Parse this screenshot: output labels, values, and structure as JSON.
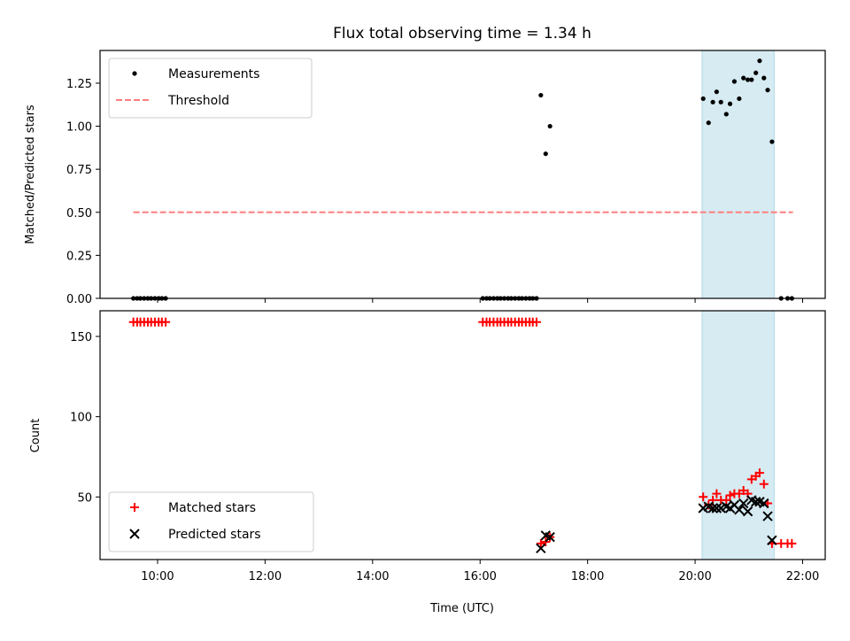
{
  "chart_data": [
    {
      "type": "scatter",
      "title": "Flux total observing time = 1.34 h",
      "xlabel": "",
      "ylabel": "Matched/Predicted stars",
      "xlim": [
        8.93,
        22.42
      ],
      "ylim": [
        0.0,
        1.44
      ],
      "yticks": [
        0.0,
        0.25,
        0.5,
        0.75,
        1.0,
        1.25
      ],
      "ytick_labels": [
        "0.00",
        "0.25",
        "0.50",
        "0.75",
        "1.00",
        "1.25"
      ],
      "legend": "top-left",
      "highlight_span": [
        20.13,
        21.47
      ],
      "highlight_color": "#add8e6",
      "series": [
        {
          "name": "Measurements",
          "kind": "points",
          "color": "#000000",
          "points": [
            [
              9.55,
              0.0
            ],
            [
              9.62,
              0.0
            ],
            [
              9.68,
              0.0
            ],
            [
              9.75,
              0.0
            ],
            [
              9.82,
              0.0
            ],
            [
              9.88,
              0.0
            ],
            [
              9.95,
              0.0
            ],
            [
              10.02,
              0.0
            ],
            [
              10.08,
              0.0
            ],
            [
              10.15,
              0.0
            ],
            [
              16.05,
              0.0
            ],
            [
              16.12,
              0.0
            ],
            [
              16.18,
              0.0
            ],
            [
              16.25,
              0.0
            ],
            [
              16.32,
              0.0
            ],
            [
              16.38,
              0.0
            ],
            [
              16.45,
              0.0
            ],
            [
              16.52,
              0.0
            ],
            [
              16.58,
              0.0
            ],
            [
              16.65,
              0.0
            ],
            [
              16.72,
              0.0
            ],
            [
              16.78,
              0.0
            ],
            [
              16.85,
              0.0
            ],
            [
              16.92,
              0.0
            ],
            [
              16.98,
              0.0
            ],
            [
              17.05,
              0.0
            ],
            [
              17.13,
              1.18
            ],
            [
              17.22,
              0.84
            ],
            [
              17.3,
              1.0
            ],
            [
              20.15,
              1.16
            ],
            [
              20.25,
              1.02
            ],
            [
              20.33,
              1.14
            ],
            [
              20.4,
              1.2
            ],
            [
              20.48,
              1.14
            ],
            [
              20.58,
              1.07
            ],
            [
              20.65,
              1.13
            ],
            [
              20.73,
              1.26
            ],
            [
              20.82,
              1.16
            ],
            [
              20.9,
              1.28
            ],
            [
              20.98,
              1.27
            ],
            [
              21.05,
              1.27
            ],
            [
              21.13,
              1.31
            ],
            [
              21.2,
              1.38
            ],
            [
              21.28,
              1.28
            ],
            [
              21.35,
              1.21
            ],
            [
              21.43,
              0.91
            ],
            [
              21.6,
              0.0
            ],
            [
              21.72,
              0.0
            ],
            [
              21.8,
              0.0
            ]
          ]
        },
        {
          "name": "Threshold",
          "kind": "dashed-line",
          "color": "#ff7f7f",
          "x": [
            9.55,
            21.82
          ],
          "y": [
            0.5,
            0.5
          ]
        }
      ]
    },
    {
      "type": "scatter",
      "title": "",
      "xlabel": "Time (UTC)",
      "ylabel": "Count",
      "xlim": [
        8.93,
        22.42
      ],
      "ylim": [
        11,
        166
      ],
      "xticks": [
        10,
        12,
        14,
        16,
        18,
        20,
        22
      ],
      "xtick_labels": [
        "10:00",
        "12:00",
        "14:00",
        "16:00",
        "18:00",
        "20:00",
        "22:00"
      ],
      "yticks": [
        50,
        100,
        150
      ],
      "ytick_labels": [
        "50",
        "100",
        "150"
      ],
      "legend": "bottom-left",
      "highlight_span": [
        20.13,
        21.47
      ],
      "highlight_color": "#add8e6",
      "series": [
        {
          "name": "Matched stars",
          "kind": "plus",
          "color": "#ff0000",
          "points": [
            [
              9.55,
              159
            ],
            [
              9.62,
              159
            ],
            [
              9.68,
              159
            ],
            [
              9.75,
              159
            ],
            [
              9.82,
              159
            ],
            [
              9.88,
              159
            ],
            [
              9.95,
              159
            ],
            [
              10.02,
              159
            ],
            [
              10.08,
              159
            ],
            [
              10.15,
              159
            ],
            [
              16.05,
              159
            ],
            [
              16.12,
              159
            ],
            [
              16.18,
              159
            ],
            [
              16.25,
              159
            ],
            [
              16.32,
              159
            ],
            [
              16.38,
              159
            ],
            [
              16.45,
              159
            ],
            [
              16.52,
              159
            ],
            [
              16.58,
              159
            ],
            [
              16.65,
              159
            ],
            [
              16.72,
              159
            ],
            [
              16.78,
              159
            ],
            [
              16.85,
              159
            ],
            [
              16.92,
              159
            ],
            [
              16.98,
              159
            ],
            [
              17.05,
              159
            ],
            [
              17.13,
              21
            ],
            [
              17.22,
              22
            ],
            [
              17.3,
              25
            ],
            [
              20.15,
              50
            ],
            [
              20.25,
              45
            ],
            [
              20.33,
              48
            ],
            [
              20.4,
              52
            ],
            [
              20.48,
              48
            ],
            [
              20.58,
              48
            ],
            [
              20.65,
              51
            ],
            [
              20.73,
              52
            ],
            [
              20.82,
              52
            ],
            [
              20.9,
              54
            ],
            [
              20.98,
              52
            ],
            [
              21.05,
              61
            ],
            [
              21.13,
              63
            ],
            [
              21.2,
              65
            ],
            [
              21.28,
              58
            ],
            [
              21.35,
              46
            ],
            [
              21.43,
              21
            ],
            [
              21.6,
              21
            ],
            [
              21.72,
              21
            ],
            [
              21.8,
              21
            ]
          ]
        },
        {
          "name": "Predicted stars",
          "kind": "cross",
          "color": "#000000",
          "points": [
            [
              17.13,
              18
            ],
            [
              17.22,
              26
            ],
            [
              17.3,
              25
            ],
            [
              20.15,
              43
            ],
            [
              20.25,
              44
            ],
            [
              20.33,
              43
            ],
            [
              20.4,
              43
            ],
            [
              20.48,
              43
            ],
            [
              20.58,
              44
            ],
            [
              20.65,
              43
            ],
            [
              20.73,
              45
            ],
            [
              20.82,
              42
            ],
            [
              20.9,
              46
            ],
            [
              20.98,
              41
            ],
            [
              21.05,
              48
            ],
            [
              21.13,
              47
            ],
            [
              21.2,
              47
            ],
            [
              21.28,
              46
            ],
            [
              21.35,
              38
            ],
            [
              21.43,
              23
            ]
          ]
        }
      ]
    }
  ]
}
